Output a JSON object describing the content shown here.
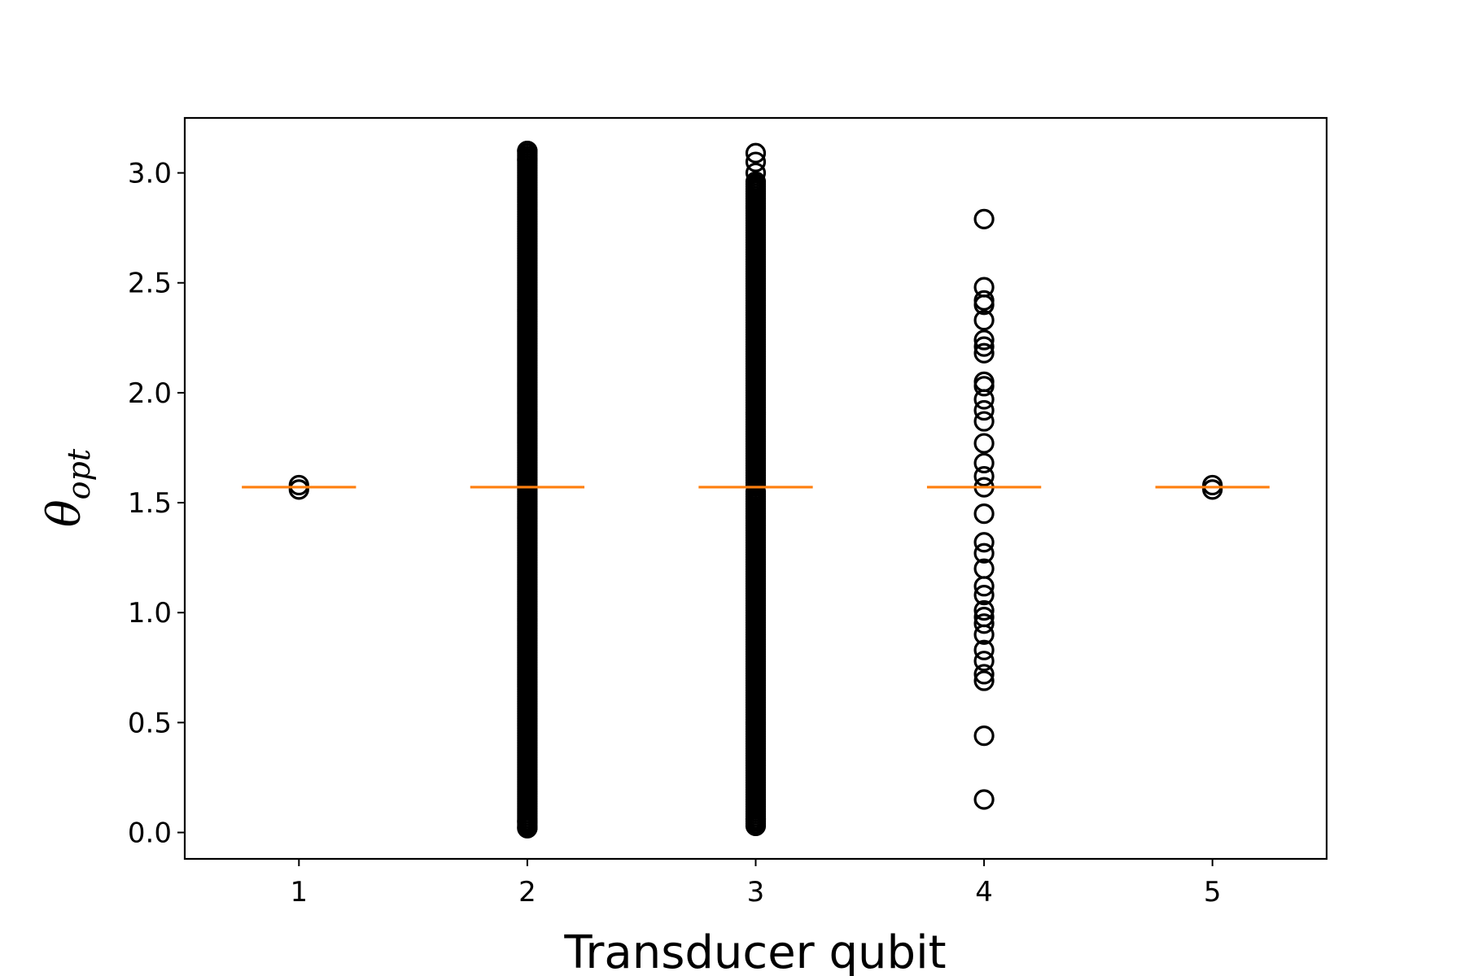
{
  "chart_data": {
    "type": "boxplot",
    "xlabel": "Transducer qubit",
    "ylabel": {
      "main": "θ",
      "sub": "opt"
    },
    "categories": [
      "1",
      "2",
      "3",
      "4",
      "5"
    ],
    "ylim": [
      -0.12,
      3.25
    ],
    "xlim": [
      0.5,
      5.5
    ],
    "yticks": [
      0.0,
      0.5,
      1.0,
      1.5,
      2.0,
      2.5,
      3.0
    ],
    "ytick_labels": [
      "0.0",
      "0.5",
      "1.0",
      "1.5",
      "2.0",
      "2.5",
      "3.0"
    ],
    "grid": false,
    "median_color": "#ff7f0e",
    "marker_color": "#000000",
    "medians": [
      1.5708,
      1.5708,
      1.5708,
      1.5708,
      1.5708
    ],
    "fliers": [
      {
        "x": 1,
        "dense_ranges": [],
        "points": [
          1.56,
          1.58
        ]
      },
      {
        "x": 2,
        "dense_ranges": [
          [
            0.02,
            3.1
          ]
        ],
        "points": [
          0.02,
          0.05,
          3.06,
          3.1
        ]
      },
      {
        "x": 3,
        "dense_ranges": [
          [
            0.04,
            1.55
          ],
          [
            1.58,
            2.96
          ]
        ],
        "points": [
          0.03,
          0.06,
          3.0,
          3.05,
          3.09
        ]
      },
      {
        "x": 4,
        "dense_ranges": [],
        "points": [
          0.15,
          0.44,
          0.69,
          0.72,
          0.78,
          0.83,
          0.9,
          0.95,
          0.98,
          1.01,
          1.08,
          1.12,
          1.2,
          1.27,
          1.32,
          1.45,
          1.57,
          1.62,
          1.68,
          1.77,
          1.87,
          1.92,
          1.97,
          2.03,
          2.05,
          2.18,
          2.21,
          2.24,
          2.33,
          2.4,
          2.42,
          2.48,
          2.79
        ]
      },
      {
        "x": 5,
        "dense_ranges": [],
        "points": [
          1.56,
          1.58
        ]
      }
    ]
  }
}
